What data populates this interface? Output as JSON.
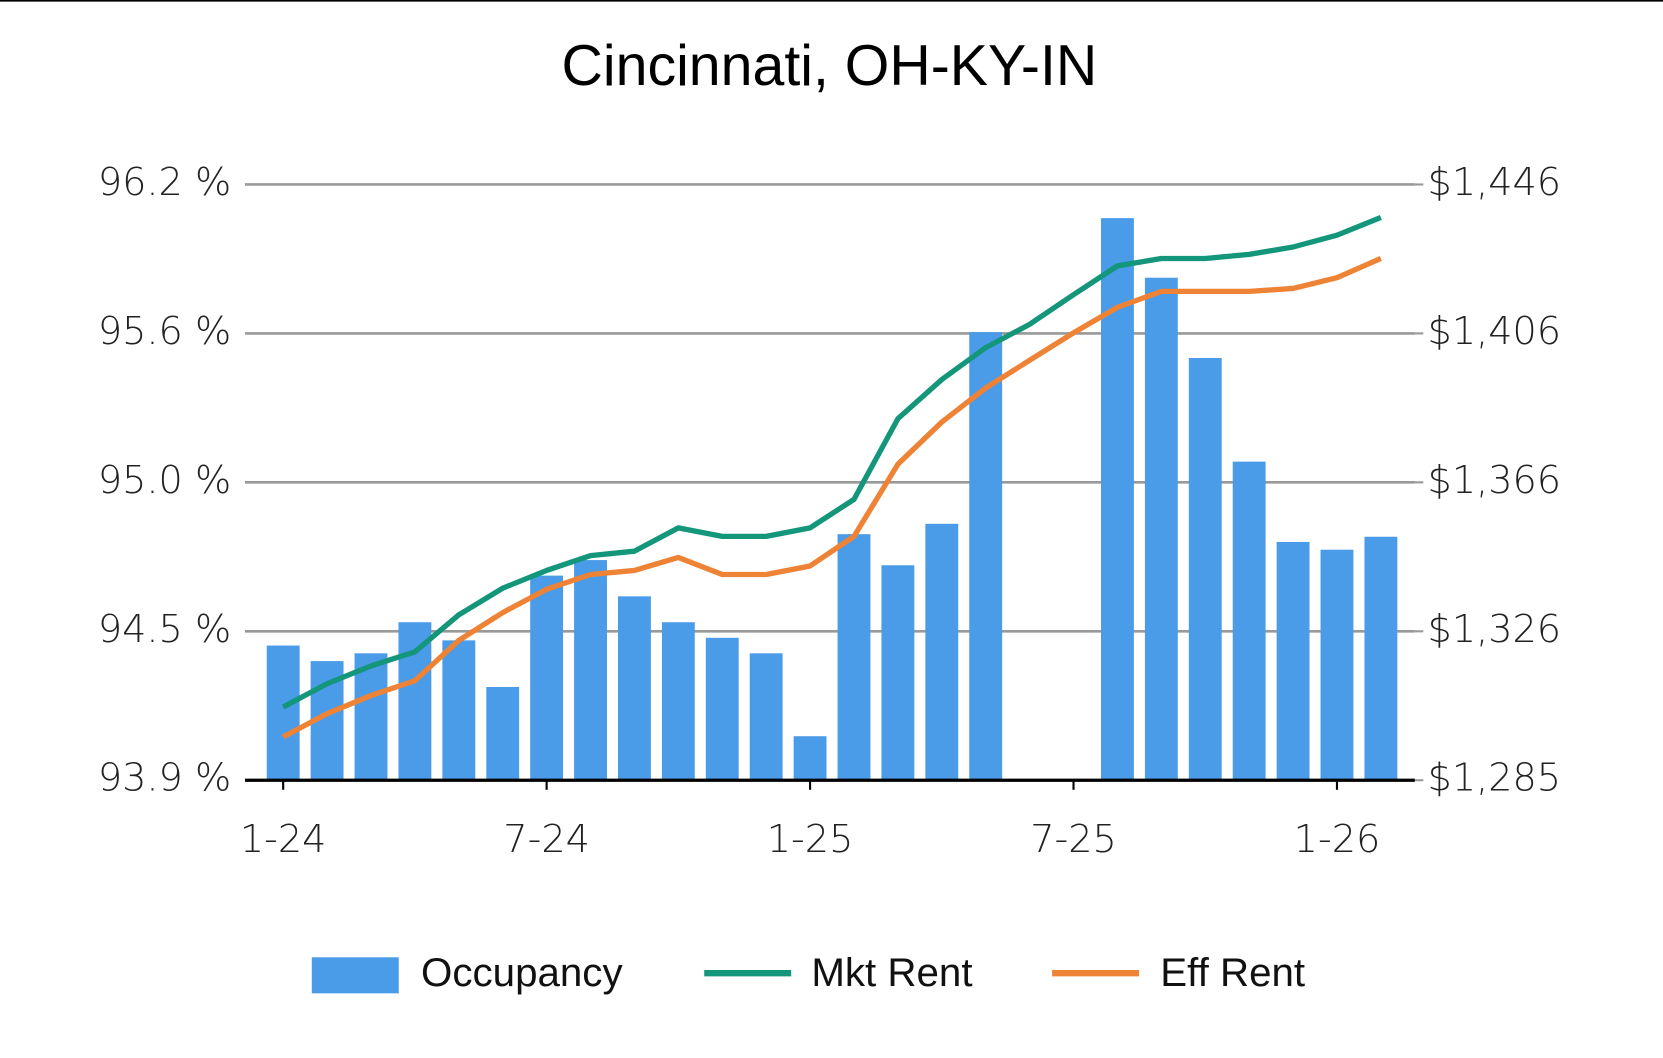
{
  "chart_data": {
    "type": "bar-line",
    "title": "Cincinnati, OH-KY-IN",
    "categories": [
      "1-24",
      null,
      null,
      null,
      null,
      null,
      "7-24",
      null,
      null,
      null,
      null,
      null,
      "1-25",
      null,
      null,
      null,
      null,
      null,
      "7-25",
      null,
      null,
      null,
      null,
      null,
      "1-26",
      null
    ],
    "series": [
      {
        "name": "Occupancy",
        "type": "bar",
        "color": "#4a9be8",
        "values": [
          94.42,
          94.36,
          94.39,
          94.51,
          94.44,
          94.26,
          94.69,
          94.75,
          94.61,
          94.51,
          94.45,
          94.39,
          94.07,
          94.85,
          94.73,
          94.89,
          95.63,
          null,
          null,
          96.07,
          95.84,
          95.53,
          95.13,
          94.82,
          94.79,
          94.84
        ]
      },
      {
        "name": "Mkt Rent",
        "type": "line",
        "axis": "y2",
        "color": "#13967a",
        "values": [
          1305.2,
          1311.5,
          1316.3,
          1320.1,
          1330.1,
          1337.3,
          1342.1,
          1346.1,
          1347.3,
          1353.6,
          1351.3,
          1351.3,
          1353.6,
          1361.3,
          1383.1,
          1393.7,
          1402.3,
          1408.6,
          1416.6,
          1424.4,
          1426.4,
          1426.4,
          1427.5,
          1429.5,
          1432.7,
          1437.5
        ]
      },
      {
        "name": "Eff Rent",
        "type": "line",
        "axis": "y2",
        "color": "#ee8336",
        "values": [
          1297.1,
          1303.4,
          1308.3,
          1312.3,
          1323.2,
          1330.7,
          1337.0,
          1341.0,
          1342.1,
          1345.6,
          1341.0,
          1341.0,
          1343.3,
          1351.3,
          1370.8,
          1382.2,
          1391.4,
          1398.9,
          1406.3,
          1413.2,
          1417.5,
          1417.5,
          1417.5,
          1418.3,
          1421.2,
          1426.4
        ]
      }
    ],
    "ylim": [
      93.9,
      96.2
    ],
    "yticks": [
      {
        "value": 93.9,
        "label": "93.9 %"
      },
      {
        "value": 94.475,
        "label": "94.5 %"
      },
      {
        "value": 95.05,
        "label": "95.0 %"
      },
      {
        "value": 95.625,
        "label": "95.6 %"
      },
      {
        "value": 96.2,
        "label": "96.2 %"
      }
    ],
    "y2lim": [
      1285.4,
      1446.4
    ],
    "y2ticks": [
      {
        "value": 1285.4,
        "label": "$1,285"
      },
      {
        "value": 1325.65,
        "label": "$1,326"
      },
      {
        "value": 1365.9,
        "label": "$1,366"
      },
      {
        "value": 1406.15,
        "label": "$1,406"
      },
      {
        "value": 1446.4,
        "label": "$1,446"
      }
    ],
    "grid": true,
    "legend": "bottom"
  }
}
